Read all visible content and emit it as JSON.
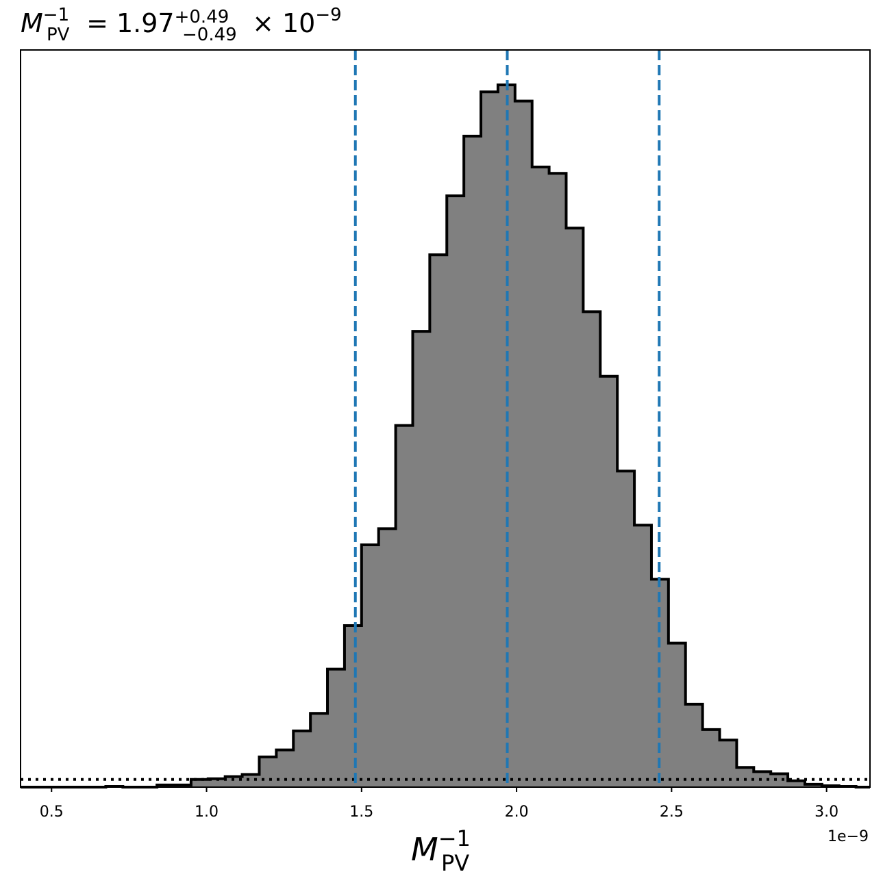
{
  "chart_data": {
    "type": "bar",
    "title": {
      "symbol": "M",
      "sub": "PV",
      "sup": "−1",
      "equals": " = 1.97",
      "err_plus": "+0.49",
      "err_minus": "−0.49",
      "times": " × 10",
      "exp": "−9"
    },
    "xlabel": {
      "symbol": "M",
      "sub": "PV",
      "sup": "−1"
    },
    "ylabel": "",
    "offset_text": "1e−9",
    "xlim": [
      0.4,
      3.14
    ],
    "ylim": [
      0,
      1.0
    ],
    "xticks": [
      0.5,
      1.0,
      1.5,
      2.0,
      2.5,
      3.0
    ],
    "xtick_labels": [
      "0.5",
      "1.0",
      "1.5",
      "2.0",
      "2.5",
      "3.0"
    ],
    "show_yticks": false,
    "grid": false,
    "histogram": {
      "fill_color": "#808080",
      "edge_color": "#000000",
      "bin_edges": [
        0.4,
        0.455,
        0.51,
        0.565,
        0.62,
        0.675,
        0.73,
        0.785,
        0.84,
        0.895,
        0.95,
        1.005,
        1.06,
        1.115,
        1.17,
        1.225,
        1.28,
        1.335,
        1.39,
        1.445,
        1.5,
        1.555,
        1.61,
        1.665,
        1.72,
        1.775,
        1.83,
        1.885,
        1.94,
        1.995,
        2.05,
        2.105,
        2.16,
        2.215,
        2.27,
        2.325,
        2.38,
        2.435,
        2.49,
        2.545,
        2.6,
        2.655,
        2.71,
        2.765,
        2.82,
        2.875,
        2.93,
        2.985,
        3.04,
        3.095,
        3.14
      ],
      "counts": [
        0.0,
        0.0,
        0.0,
        0.0,
        0.0,
        0.001,
        0.0,
        0.0,
        0.003,
        0.003,
        0.011,
        0.012,
        0.015,
        0.018,
        0.043,
        0.053,
        0.08,
        0.105,
        0.168,
        0.23,
        0.345,
        0.368,
        0.515,
        0.649,
        0.758,
        0.842,
        0.927,
        0.99,
        1.0,
        0.977,
        0.883,
        0.874,
        0.796,
        0.677,
        0.585,
        0.45,
        0.373,
        0.296,
        0.205,
        0.118,
        0.082,
        0.067,
        0.028,
        0.022,
        0.019,
        0.009,
        0.004,
        0.002,
        0.001,
        0.0
      ]
    },
    "vlines": {
      "color": "#1f77b4",
      "style": "dashed",
      "x": [
        1.48,
        1.97,
        2.46
      ]
    },
    "hline": {
      "color": "#000000",
      "style": "dotted",
      "y": 0.011
    }
  }
}
